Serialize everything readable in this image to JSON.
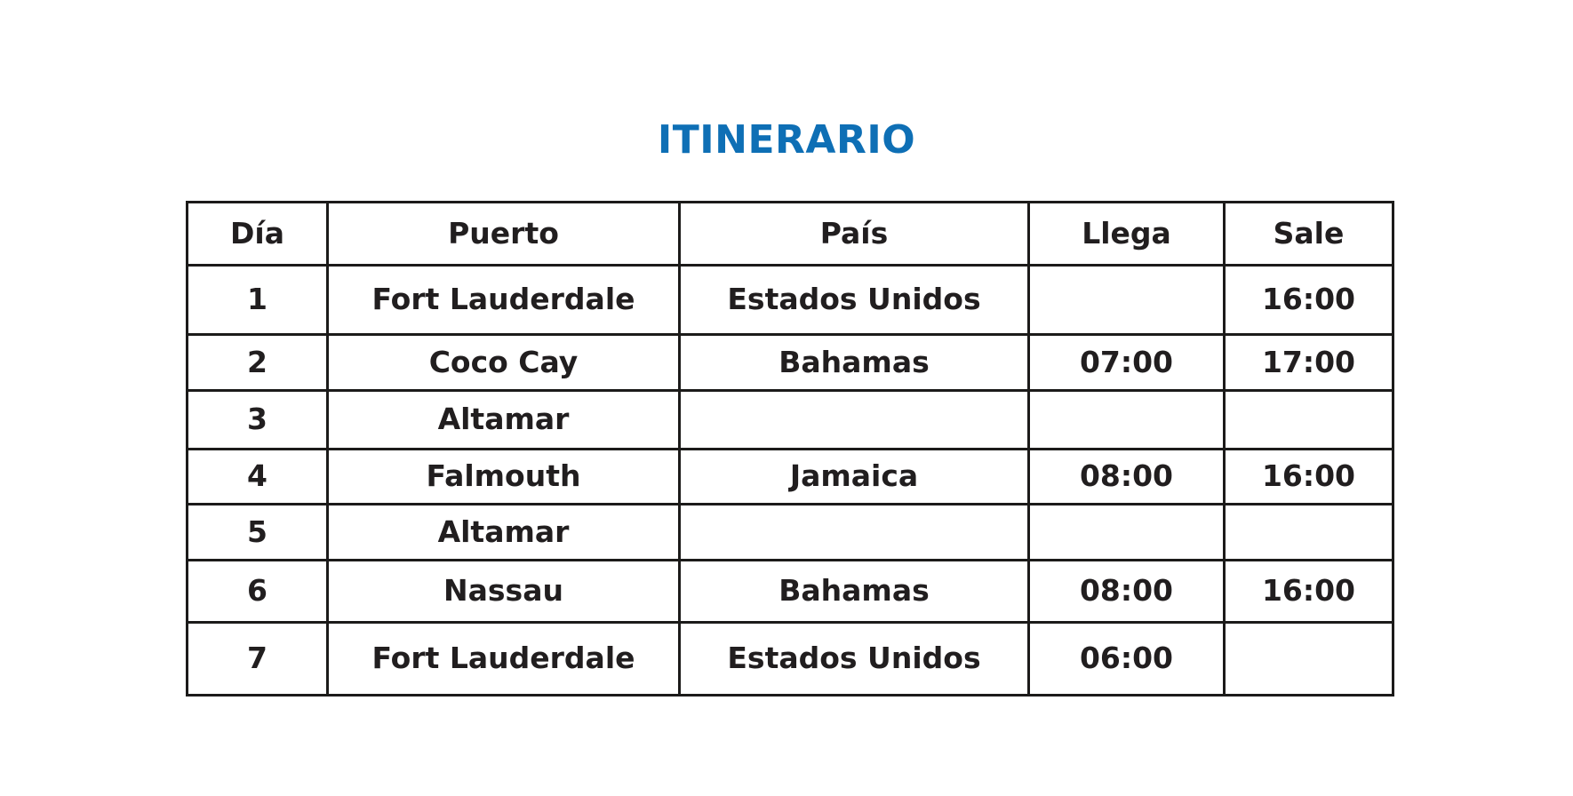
{
  "page": {
    "background_color": "#ffffff",
    "accent_blue": "#0e6fb5",
    "text_color": "#211e1f",
    "border_color": "#1c1b1a"
  },
  "title": "ITINERARIO",
  "table": {
    "columns": [
      "Día",
      "Puerto",
      "País",
      "Llega",
      "Sale"
    ],
    "rows": [
      [
        "1",
        "Fort Lauderdale",
        "Estados Unidos",
        "",
        "16:00"
      ],
      [
        "2",
        "Coco Cay",
        "Bahamas",
        "07:00",
        "17:00"
      ],
      [
        "3",
        "Altamar",
        "",
        "",
        ""
      ],
      [
        "4",
        "Falmouth",
        "Jamaica",
        "08:00",
        "16:00"
      ],
      [
        "5",
        "Altamar",
        "",
        "",
        ""
      ],
      [
        "6",
        "Nassau",
        "Bahamas",
        "08:00",
        "16:00"
      ],
      [
        "7",
        "Fort Lauderdale",
        "Estados Unidos",
        "06:00",
        ""
      ]
    ]
  }
}
